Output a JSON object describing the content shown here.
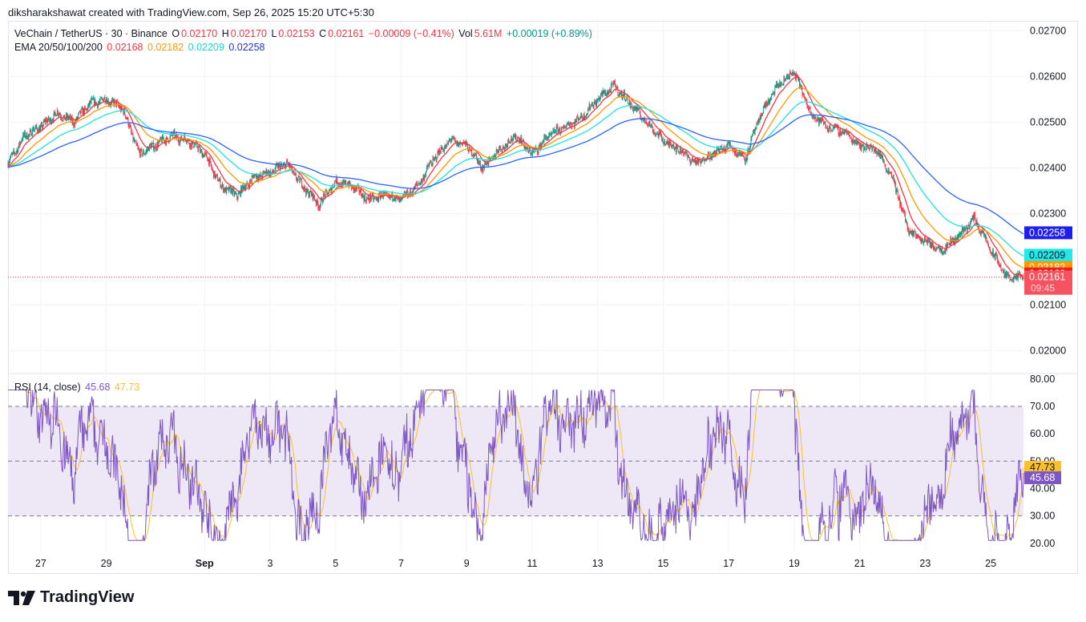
{
  "caption": "diksharakshawat created with TradingView.com, Sep 26, 2025 15:20 UTC+5:30",
  "legend": {
    "symbol": "VeChain / TetherUS · 30 · Binance",
    "o_label": "O",
    "o": "0.02170",
    "h_label": "H",
    "h": "0.02170",
    "l_label": "L",
    "l": "0.02153",
    "c_label": "C",
    "c": "0.02161",
    "chg": "−0.00009 (−0.41%)",
    "vol_label": "Vol",
    "vol": "5.61M",
    "vol_chg": "+0.00019 (+0.89%)",
    "ema_label": "EMA 20/50/100/200",
    "ema20": "0.02168",
    "ema50": "0.02182",
    "ema100": "0.02209",
    "ema200": "0.02258"
  },
  "rsi_legend": {
    "label": "RSI (14, close)",
    "rsi": "45.68",
    "ma": "47.73"
  },
  "brand": "TradingView",
  "colors": {
    "up": "#089981",
    "down": "#f23645",
    "ema20": "#f23645",
    "ema50": "#ff9800",
    "ema100": "#22e0e0",
    "ema200": "#2962ff",
    "rsi": "#7e57c2",
    "rsi_ma": "#fbc02d",
    "band": "#ede7f6"
  },
  "chart_data": [
    {
      "type": "candlestick",
      "title": "VeChain / TetherUS · 30 · Binance",
      "ylim": [
        0.0195,
        0.0272
      ],
      "y_ticks": [
        "0.02700",
        "0.02600",
        "0.02500",
        "0.02400",
        "0.02300",
        "0.02100",
        "0.02000"
      ],
      "x_ticks": [
        "27",
        "29",
        "Sep",
        "3",
        "5",
        "7",
        "9",
        "11",
        "13",
        "15",
        "17",
        "19",
        "21",
        "23",
        "25"
      ],
      "grid": true,
      "price_path": {
        "day": [
          26.0,
          26.5,
          27.0,
          27.5,
          28.0,
          28.5,
          29.0,
          29.5,
          30.0,
          30.5,
          31.0,
          31.5,
          32.0,
          32.5,
          33.0,
          33.5,
          34.0,
          34.5,
          35.0,
          35.5,
          36.0,
          36.5,
          37.0,
          37.5,
          38.0,
          38.5,
          39.0,
          39.5,
          40.0,
          40.5,
          41.0,
          41.5,
          42.0,
          42.5,
          43.0,
          43.5,
          44.0,
          44.5,
          45.0,
          45.5,
          46.0,
          46.5,
          47.0,
          47.5,
          48.0,
          48.5,
          49.0,
          49.5,
          50.0,
          50.5,
          51.0,
          51.5,
          52.0,
          52.5,
          53.0,
          53.5,
          54.0,
          54.5,
          55.0,
          55.5,
          56.0,
          56.5,
          57.0
        ],
        "close": [
          0.0241,
          0.0247,
          0.0249,
          0.0252,
          0.025,
          0.0254,
          0.0255,
          0.0253,
          0.0243,
          0.0245,
          0.0247,
          0.0246,
          0.0243,
          0.0236,
          0.0234,
          0.0238,
          0.0239,
          0.0241,
          0.0236,
          0.0232,
          0.0237,
          0.0236,
          0.0233,
          0.0234,
          0.0233,
          0.0236,
          0.0242,
          0.0246,
          0.0245,
          0.024,
          0.0244,
          0.0247,
          0.0243,
          0.0247,
          0.0249,
          0.0251,
          0.0255,
          0.0258,
          0.0254,
          0.025,
          0.0246,
          0.0244,
          0.0241,
          0.0243,
          0.0245,
          0.0242,
          0.0252,
          0.0258,
          0.0261,
          0.0252,
          0.0249,
          0.0248,
          0.0245,
          0.0244,
          0.0238,
          0.0226,
          0.0224,
          0.0222,
          0.0225,
          0.0229,
          0.0222,
          0.0216,
          0.0216
        ]
      },
      "series": [
        {
          "name": "EMA 20",
          "last": 0.02168
        },
        {
          "name": "EMA 50",
          "last": 0.02182
        },
        {
          "name": "EMA 100",
          "last": 0.02209
        },
        {
          "name": "EMA 200",
          "last": 0.02258
        }
      ],
      "last_price": "0.02161",
      "countdown": "09:45"
    },
    {
      "type": "line",
      "title": "RSI (14, close)",
      "ylim": [
        17,
        82
      ],
      "y_ticks": [
        "80.00",
        "70.00",
        "60.00",
        "50.00",
        "40.00",
        "30.00",
        "20.00"
      ],
      "band": [
        30,
        70
      ],
      "series": [
        {
          "name": "RSI",
          "last": 45.68
        },
        {
          "name": "RSI MA",
          "last": 47.73
        }
      ]
    }
  ]
}
